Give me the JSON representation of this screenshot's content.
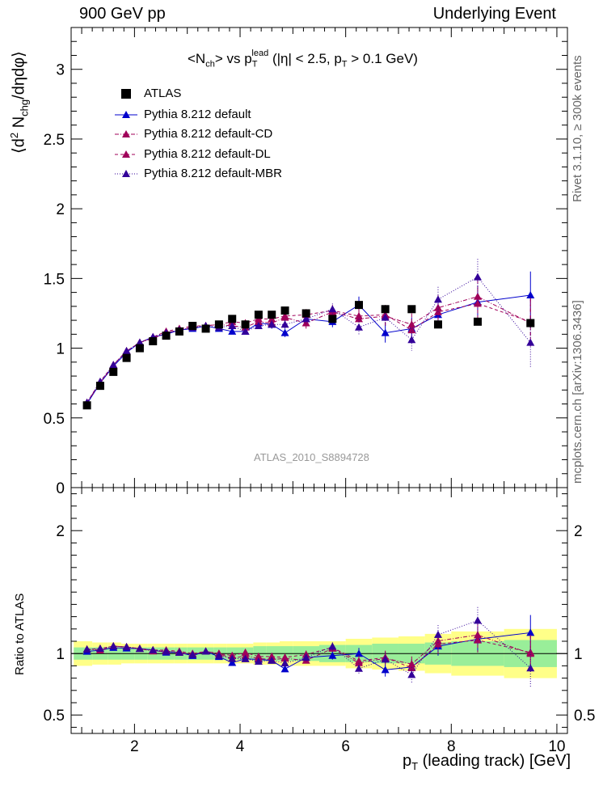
{
  "header": {
    "left": "900 GeV pp",
    "right": "Underlying Event"
  },
  "side_labels": {
    "rivet": "Rivet 3.1.10, ≥ 300k events",
    "mcplots": "mcplots.cern.ch [arXiv:1306.3436]"
  },
  "watermark": "ATLAS_2010_S8894728",
  "title_parts": {
    "lt": "<N",
    "ch": "ch",
    "vs": "> vs p",
    "lead": "lead",
    "T": "T",
    "cut1": " (|η| < 2.5, p",
    "cut2": " > 0.1 GeV)"
  },
  "ylabel_main_parts": {
    "a": "⟨d",
    "two": "2",
    "b": " N",
    "chg": "chg",
    "c": "/dηdφ⟩"
  },
  "ylabel_ratio": "Ratio to ATLAS",
  "xlabel_parts": {
    "p": "p",
    "T": "T",
    "rest": " (leading track) [GeV]"
  },
  "legend": [
    {
      "label": "ATLAS",
      "color": "#000000",
      "marker": "square"
    },
    {
      "label": "Pythia 8.212 default",
      "color": "#0000cc",
      "marker": "triangle",
      "dash": "solid"
    },
    {
      "label": "Pythia 8.212 default-CD",
      "color": "#a0005a",
      "marker": "triangle",
      "dash": "dashdot"
    },
    {
      "label": "Pythia 8.212 default-DL",
      "color": "#a0005a",
      "marker": "triangle",
      "dash": "dashed"
    },
    {
      "label": "Pythia 8.212 default-MBR",
      "color": "#330099",
      "marker": "triangle",
      "dash": "dotted"
    }
  ],
  "chart_data": {
    "type": "scatter",
    "xlim": [
      0.8,
      10.2
    ],
    "ylim_main": [
      0,
      3.3
    ],
    "ylim_ratio": [
      0.35,
      2.35
    ],
    "main_yticks": [
      "0",
      "0.5",
      "1",
      "1.5",
      "2",
      "2.5",
      "3"
    ],
    "ratio_yticks": [
      "0.5",
      "1",
      "2"
    ],
    "xticks": [
      "2",
      "4",
      "6",
      "8",
      "10"
    ],
    "x": [
      1.1,
      1.35,
      1.6,
      1.85,
      2.1,
      2.35,
      2.6,
      2.85,
      3.1,
      3.35,
      3.6,
      3.85,
      4.1,
      4.35,
      4.6,
      4.85,
      5.25,
      5.75,
      6.25,
      6.75,
      7.25,
      7.75,
      8.5,
      9.5
    ],
    "atlas": [
      0.59,
      0.73,
      0.83,
      0.93,
      1.0,
      1.05,
      1.09,
      1.12,
      1.16,
      1.14,
      1.17,
      1.21,
      1.17,
      1.24,
      1.24,
      1.27,
      1.25,
      1.21,
      1.31,
      1.28,
      1.28,
      1.17,
      1.19,
      1.18
    ],
    "series": [
      {
        "name": "Pythia 8.212 default",
        "values": [
          0.6,
          0.75,
          0.87,
          0.97,
          1.04,
          1.08,
          1.1,
          1.13,
          1.14,
          1.16,
          1.14,
          1.12,
          1.12,
          1.18,
          1.17,
          1.11,
          1.21,
          1.19,
          1.31,
          1.11,
          1.14,
          1.24,
          1.33,
          1.38
        ],
        "err": [
          0.01,
          0.01,
          0.01,
          0.01,
          0.01,
          0.01,
          0.01,
          0.01,
          0.01,
          0.01,
          0.01,
          0.02,
          0.02,
          0.02,
          0.03,
          0.03,
          0.04,
          0.04,
          0.06,
          0.07,
          0.08,
          0.09,
          0.12,
          0.17
        ]
      },
      {
        "name": "Pythia 8.212 default-CD",
        "values": [
          0.61,
          0.75,
          0.88,
          0.98,
          1.04,
          1.07,
          1.11,
          1.13,
          1.15,
          1.16,
          1.17,
          1.16,
          1.15,
          1.19,
          1.18,
          1.22,
          1.18,
          1.26,
          1.21,
          1.23,
          1.17,
          1.29,
          1.37,
          1.18
        ],
        "err": [
          0.01,
          0.01,
          0.01,
          0.01,
          0.01,
          0.01,
          0.01,
          0.01,
          0.01,
          0.01,
          0.01,
          0.02,
          0.02,
          0.02,
          0.03,
          0.03,
          0.04,
          0.04,
          0.06,
          0.07,
          0.08,
          0.09,
          0.12,
          0.17
        ]
      },
      {
        "name": "Pythia 8.212 default-DL",
        "values": [
          0.61,
          0.76,
          0.88,
          0.98,
          1.04,
          1.08,
          1.12,
          1.14,
          1.16,
          1.16,
          1.17,
          1.19,
          1.18,
          1.21,
          1.21,
          1.23,
          1.24,
          1.27,
          1.23,
          1.24,
          1.13,
          1.26,
          1.32,
          1.19
        ],
        "err": [
          0.01,
          0.01,
          0.01,
          0.01,
          0.01,
          0.01,
          0.01,
          0.01,
          0.01,
          0.01,
          0.01,
          0.02,
          0.02,
          0.02,
          0.03,
          0.03,
          0.04,
          0.04,
          0.06,
          0.07,
          0.08,
          0.09,
          0.12,
          0.17
        ]
      },
      {
        "name": "Pythia 8.212 default-MBR",
        "values": [
          0.61,
          0.76,
          0.88,
          0.98,
          1.04,
          1.08,
          1.11,
          1.13,
          1.15,
          1.16,
          1.15,
          1.16,
          1.12,
          1.16,
          1.17,
          1.17,
          1.21,
          1.28,
          1.15,
          1.22,
          1.06,
          1.35,
          1.51,
          1.04
        ],
        "err": [
          0.01,
          0.01,
          0.01,
          0.01,
          0.01,
          0.01,
          0.01,
          0.01,
          0.01,
          0.01,
          0.01,
          0.02,
          0.02,
          0.02,
          0.03,
          0.03,
          0.04,
          0.04,
          0.06,
          0.07,
          0.08,
          0.09,
          0.13,
          0.18
        ]
      }
    ],
    "band_edges": [
      0.85,
      1.2,
      1.5,
      1.75,
      2.0,
      2.25,
      2.5,
      2.75,
      3.0,
      3.25,
      3.5,
      3.75,
      4.0,
      4.25,
      4.5,
      4.75,
      5.0,
      5.5,
      6.0,
      6.5,
      7.0,
      7.5,
      8.0,
      9.0,
      10.0
    ],
    "stat_band": [
      0.05,
      0.05,
      0.05,
      0.05,
      0.05,
      0.05,
      0.05,
      0.05,
      0.05,
      0.05,
      0.05,
      0.05,
      0.05,
      0.06,
      0.06,
      0.06,
      0.06,
      0.07,
      0.07,
      0.08,
      0.08,
      0.09,
      0.1,
      0.11
    ],
    "total_band": [
      0.1,
      0.09,
      0.09,
      0.08,
      0.08,
      0.08,
      0.08,
      0.08,
      0.08,
      0.08,
      0.08,
      0.08,
      0.08,
      0.09,
      0.09,
      0.1,
      0.1,
      0.1,
      0.12,
      0.13,
      0.14,
      0.16,
      0.18,
      0.2
    ]
  }
}
